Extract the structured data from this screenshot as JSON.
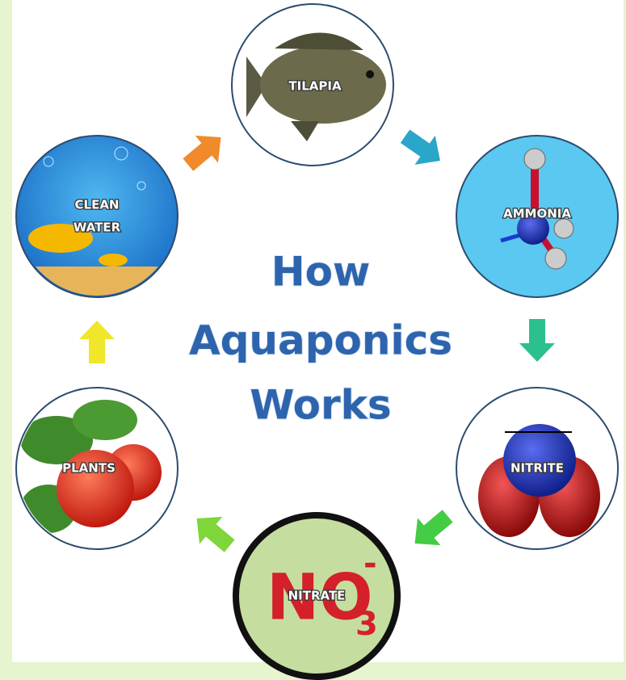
{
  "title": {
    "lines": [
      "How",
      "Aquaponics",
      "Works"
    ]
  },
  "nodes": [
    {
      "label": [
        "TILAPIA"
      ]
    },
    {
      "label": [
        "AMMONIA"
      ]
    },
    {
      "label": [
        "NITRITE"
      ]
    },
    {
      "label": [
        "NITRATE"
      ],
      "formula": [
        "NO",
        "3",
        "-"
      ]
    },
    {
      "label": [
        "PLANTS"
      ]
    },
    {
      "label": [
        "CLEAN",
        "WATER"
      ]
    }
  ]
}
